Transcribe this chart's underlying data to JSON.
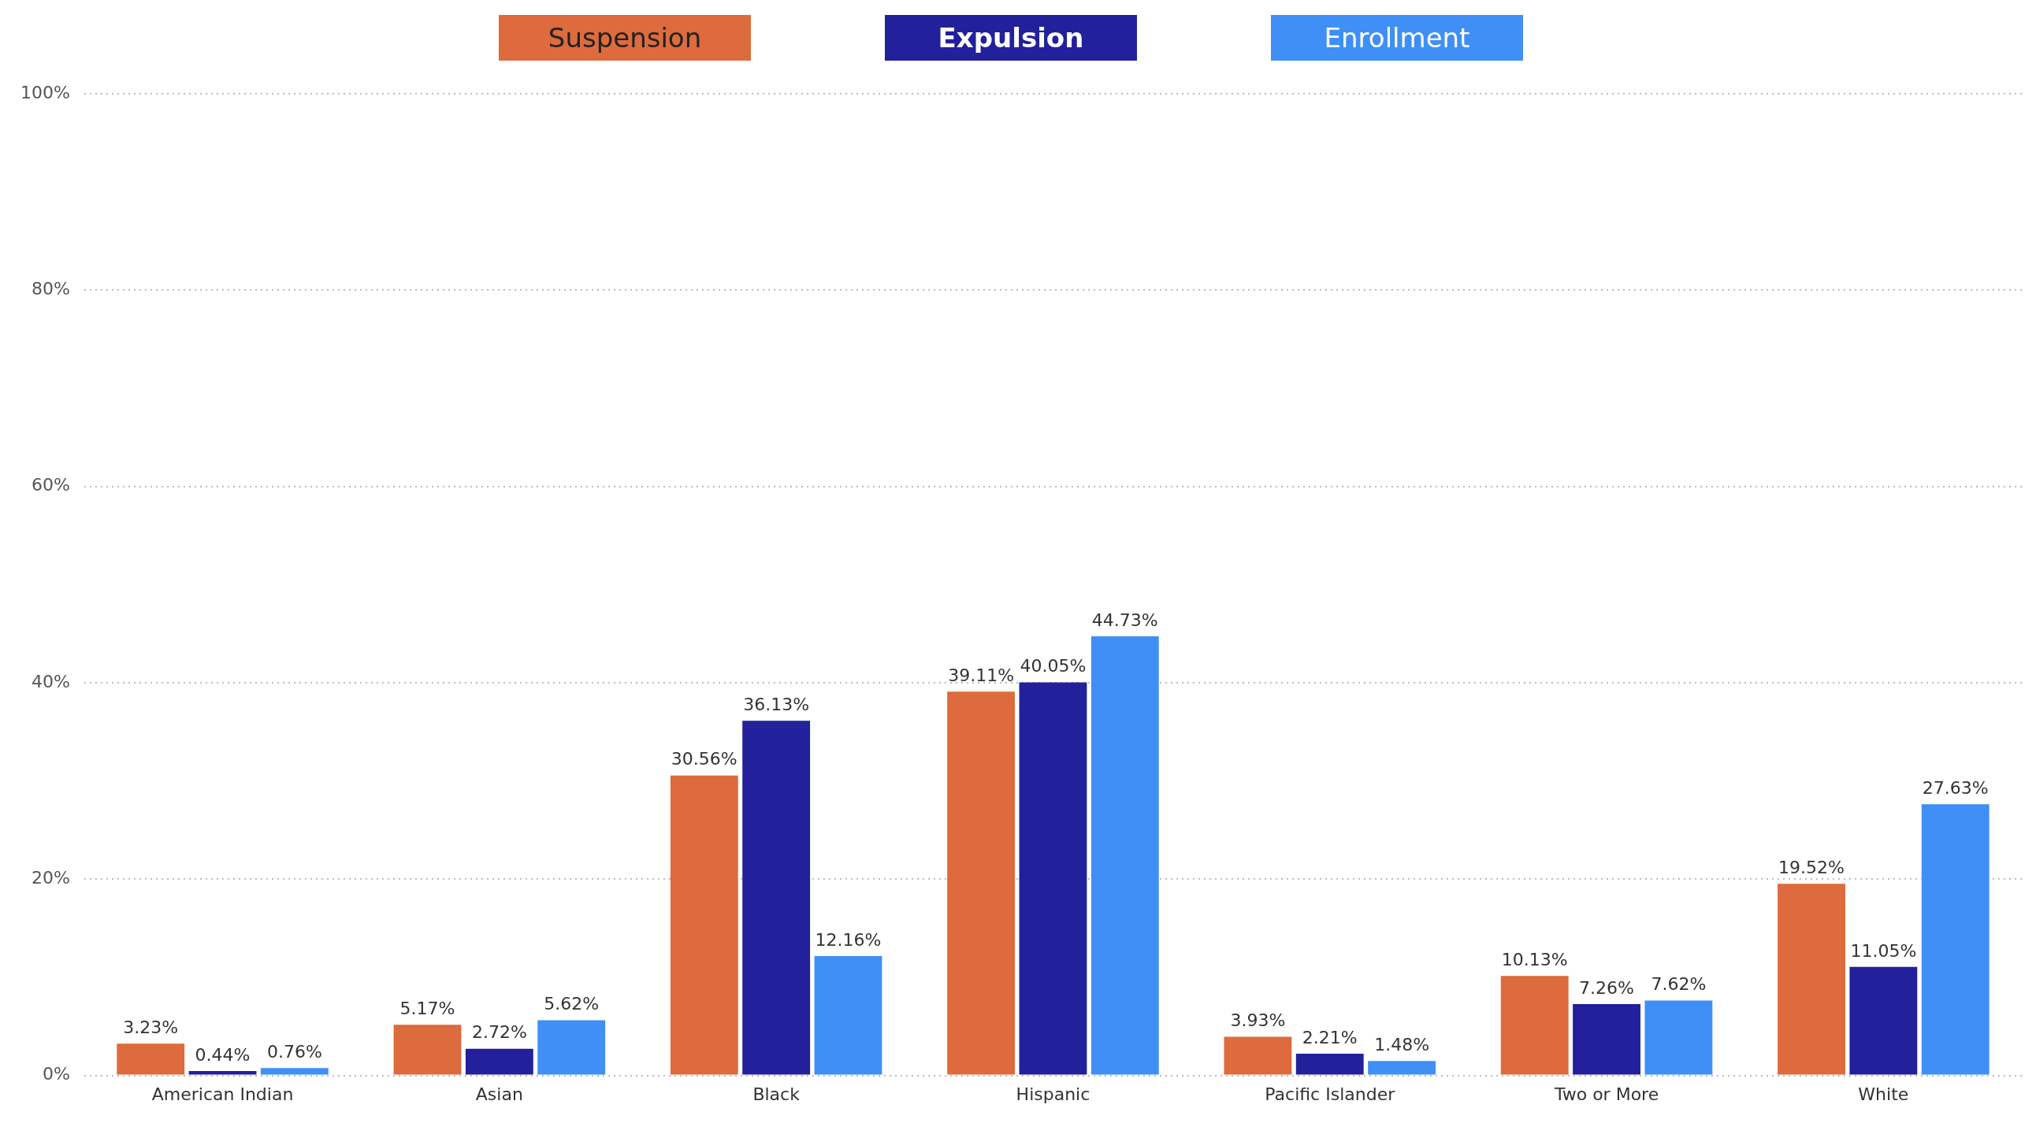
{
  "chart_data": {
    "type": "bar",
    "categories": [
      "American Indian",
      "Asian",
      "Black",
      "Hispanic",
      "Pacific Islander",
      "Two or More",
      "White"
    ],
    "series": [
      {
        "name": "Suspension",
        "color": "#dd6b3d",
        "values": [
          3.23,
          5.17,
          30.56,
          39.11,
          3.93,
          10.13,
          19.52
        ],
        "value_labels": [
          "3.23%",
          "5.17%",
          "30.56%",
          "39.11%",
          "3.93%",
          "10.13%",
          "19.52%"
        ]
      },
      {
        "name": "Expulsion",
        "color": "#22209a",
        "values": [
          0.44,
          2.72,
          36.13,
          40.05,
          2.21,
          7.26,
          11.05
        ],
        "value_labels": [
          "0.44%",
          "2.72%",
          "36.13%",
          "40.05%",
          "2.21%",
          "7.26%",
          "11.05%"
        ]
      },
      {
        "name": "Enrollment",
        "color": "#3f8ff7",
        "values": [
          0.76,
          5.62,
          12.16,
          44.73,
          1.48,
          7.62,
          27.63
        ],
        "value_labels": [
          "0.76%",
          "5.62%",
          "12.16%",
          "44.73%",
          "1.48%",
          "7.62%",
          "27.63%"
        ]
      }
    ],
    "ylim": [
      0,
      100
    ],
    "yticks": [
      {
        "value": 0,
        "label": "0%"
      },
      {
        "value": 20,
        "label": "20%"
      },
      {
        "value": 40,
        "label": "40%"
      },
      {
        "value": 60,
        "label": "60%"
      },
      {
        "value": 80,
        "label": "80%"
      },
      {
        "value": 100,
        "label": "100%"
      }
    ],
    "grid": "y",
    "legend": "top"
  }
}
